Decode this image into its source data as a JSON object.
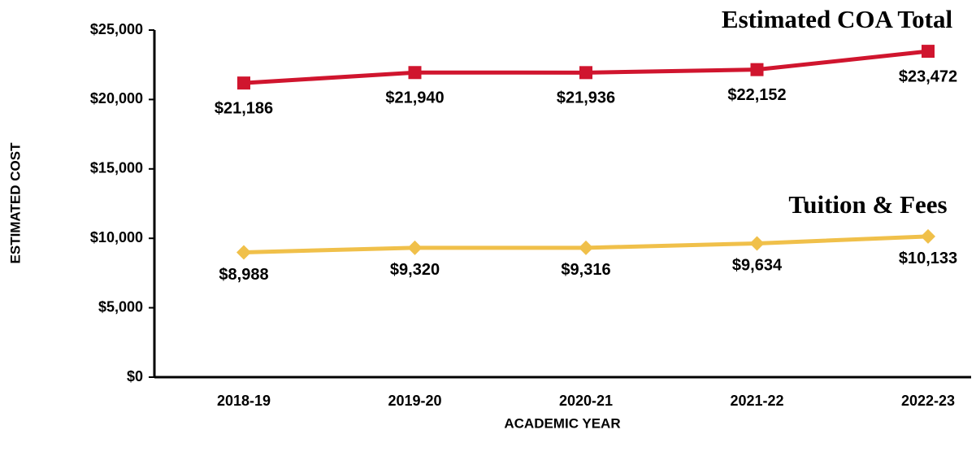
{
  "chart_data": {
    "type": "line",
    "x_label": "ACADEMIC YEAR",
    "y_label": "ESTIMATED COST",
    "categories": [
      "2018-19",
      "2019-20",
      "2020-21",
      "2021-22",
      "2022-23"
    ],
    "series": [
      {
        "name": "Estimated COA Total",
        "color": "#d0152e",
        "marker": "square",
        "values": [
          21186,
          21940,
          21936,
          22152,
          23472
        ],
        "value_labels": [
          "$21,186",
          "$21,940",
          "$21,936",
          "$22,152",
          "$23,472"
        ]
      },
      {
        "name": "Tuition & Fees",
        "color": "#f0c04a",
        "marker": "diamond",
        "values": [
          8988,
          9320,
          9316,
          9634,
          10133
        ],
        "value_labels": [
          "$8,988",
          "$9,320",
          "$9,316",
          "$9,634",
          "$10,133"
        ]
      }
    ],
    "ylim": [
      0,
      25000
    ],
    "yticks": [
      {
        "value": 0,
        "label": "$0"
      },
      {
        "value": 5000,
        "label": "$5,000"
      },
      {
        "value": 10000,
        "label": "$10,000"
      },
      {
        "value": 15000,
        "label": "$15,000"
      },
      {
        "value": 20000,
        "label": "$20,000"
      },
      {
        "value": 25000,
        "label": "$25,000"
      }
    ],
    "grid": false
  }
}
